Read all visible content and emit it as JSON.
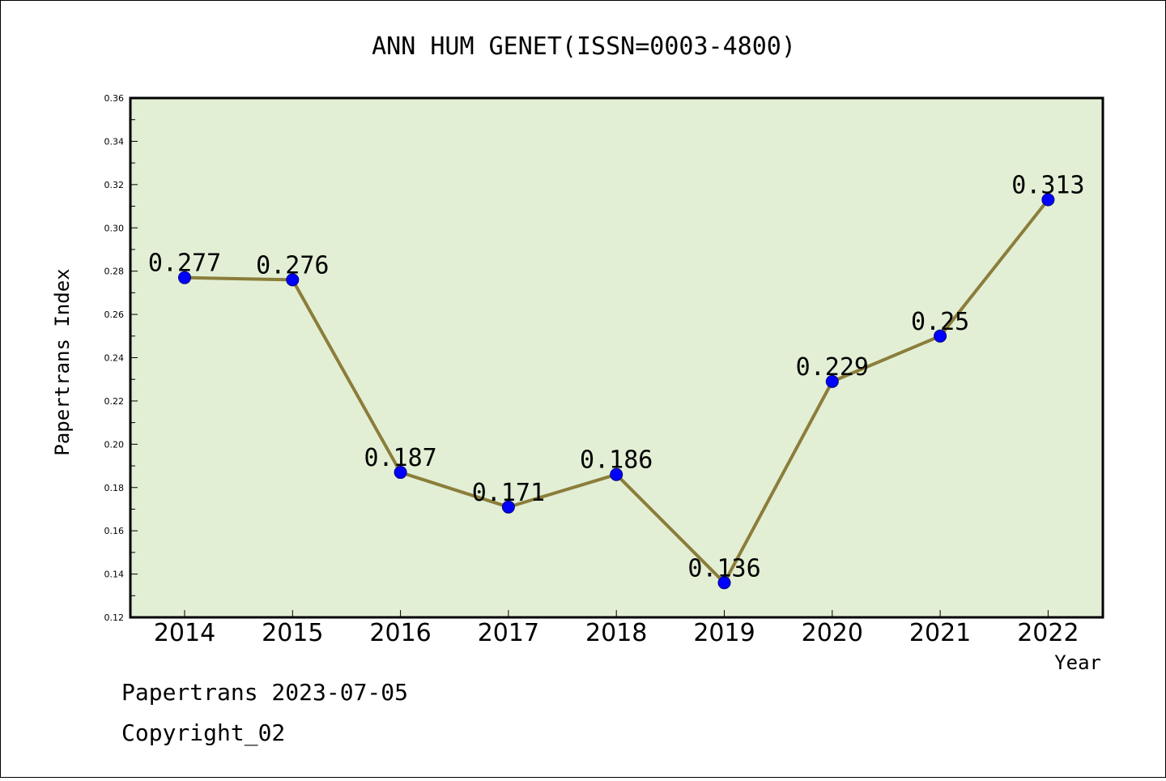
{
  "chart_data": {
    "type": "line",
    "title": "ANN HUM GENET(ISSN=0003-4800)",
    "xlabel": "Year",
    "ylabel": "Papertrans Index",
    "categories": [
      "2014",
      "2015",
      "2016",
      "2017",
      "2018",
      "2019",
      "2020",
      "2021",
      "2022"
    ],
    "values": [
      0.277,
      0.276,
      0.187,
      0.171,
      0.186,
      0.136,
      0.229,
      0.25,
      0.313
    ],
    "data_labels": [
      "0.277",
      "0.276",
      "0.187",
      "0.171",
      "0.186",
      "0.136",
      "0.229",
      "0.25",
      "0.313"
    ],
    "ylim": [
      0.12,
      0.36
    ],
    "yticks": [
      "0.12",
      "0.14",
      "0.16",
      "0.18",
      "0.20",
      "0.22",
      "0.24",
      "0.26",
      "0.28",
      "0.30",
      "0.32",
      "0.34",
      "0.36"
    ],
    "grid": false,
    "colors": {
      "plot_background": "#e2efd5",
      "line": "#8b7d3a",
      "marker": "#0000ff"
    }
  },
  "footer": {
    "line1": "Papertrans 2023-07-05",
    "line2": "Copyright_02"
  }
}
